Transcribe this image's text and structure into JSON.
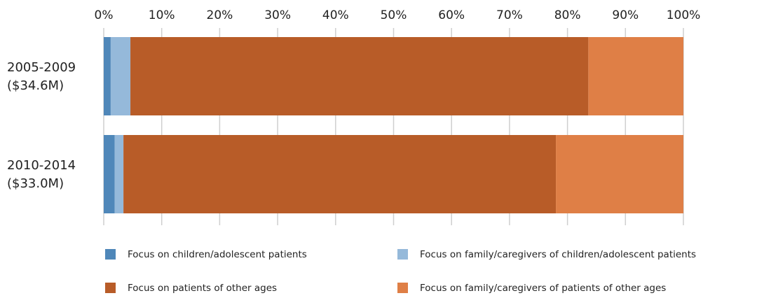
{
  "chart_data": {
    "type": "stacked-barh",
    "categories": [
      [
        "2005-2009",
        "($34.6M)"
      ],
      [
        "2010-2014",
        "($33.0M)"
      ]
    ],
    "series": [
      {
        "name": "Focus on children/adolescent patients",
        "color": "#4f87b9",
        "values": [
          1.2,
          1.9
        ]
      },
      {
        "name": "Focus on family/caregivers of children/adolescent patients",
        "color": "#95b9da",
        "values": [
          3.4,
          1.5
        ]
      },
      {
        "name": "Focus on patients of other ages",
        "color": "#b85c28",
        "values": [
          79,
          74.6
        ]
      },
      {
        "name": "Focus on family/caregivers of patients of other ages",
        "color": "#df7f46",
        "values": [
          16.4,
          22
        ]
      }
    ],
    "xlim": [
      0,
      100
    ],
    "xticks": [
      {
        "value": 0,
        "label": "0%"
      },
      {
        "value": 10,
        "label": "10%"
      },
      {
        "value": 20,
        "label": "20%"
      },
      {
        "value": 30,
        "label": "30%"
      },
      {
        "value": 40,
        "label": "40%"
      },
      {
        "value": 50,
        "label": "50%"
      },
      {
        "value": 60,
        "label": "60%"
      },
      {
        "value": 70,
        "label": "70%"
      },
      {
        "value": 80,
        "label": "80%"
      },
      {
        "value": 90,
        "label": "90%"
      },
      {
        "value": 100,
        "label": "100%"
      }
    ],
    "grid": true
  }
}
